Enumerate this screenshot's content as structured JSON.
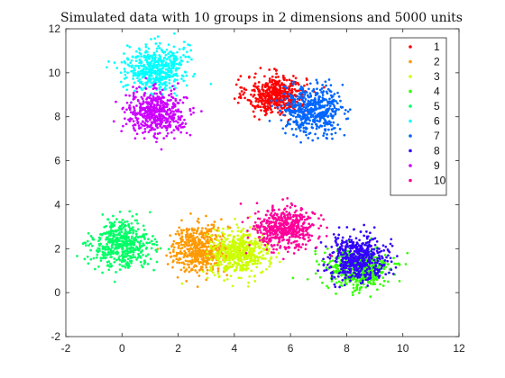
{
  "chart_data": {
    "type": "scatter",
    "title": "Simulated data with 10 groups in 2 dimensions and 5000 units",
    "xlabel": "",
    "ylabel": "",
    "xlim": [
      -2,
      12
    ],
    "ylim": [
      -2,
      12
    ],
    "x_ticks": [
      "-2",
      "0",
      "2",
      "4",
      "6",
      "8",
      "10",
      "12"
    ],
    "y_ticks": [
      "-2",
      "0",
      "2",
      "4",
      "6",
      "8",
      "10",
      "12"
    ],
    "grid": false,
    "legend_position": "top-right",
    "series": [
      {
        "name": "1",
        "color": "#ff0000",
        "center": [
          5.5,
          9.0
        ],
        "spread": [
          0.85,
          0.7
        ]
      },
      {
        "name": "2",
        "color": "#ff9900",
        "center": [
          2.8,
          2.0
        ],
        "spread": [
          0.85,
          0.85
        ]
      },
      {
        "name": "3",
        "color": "#ccff00",
        "center": [
          4.2,
          1.8
        ],
        "spread": [
          0.85,
          0.8
        ]
      },
      {
        "name": "4",
        "color": "#33ff00",
        "center": [
          8.4,
          1.1
        ],
        "spread": [
          0.9,
          0.8
        ]
      },
      {
        "name": "5",
        "color": "#00ff66",
        "center": [
          0.0,
          2.2
        ],
        "spread": [
          0.85,
          0.85
        ]
      },
      {
        "name": "6",
        "color": "#00ffff",
        "center": [
          1.2,
          10.2
        ],
        "spread": [
          0.85,
          0.85
        ]
      },
      {
        "name": "7",
        "color": "#0066ff",
        "center": [
          6.8,
          8.3
        ],
        "spread": [
          0.85,
          0.85
        ]
      },
      {
        "name": "8",
        "color": "#3300ff",
        "center": [
          8.4,
          1.6
        ],
        "spread": [
          0.85,
          0.8
        ]
      },
      {
        "name": "9",
        "color": "#cc00ff",
        "center": [
          1.2,
          8.2
        ],
        "spread": [
          0.85,
          0.8
        ]
      },
      {
        "name": "10",
        "color": "#ff0099",
        "center": [
          5.8,
          2.9
        ],
        "spread": [
          0.85,
          0.75
        ]
      }
    ]
  }
}
